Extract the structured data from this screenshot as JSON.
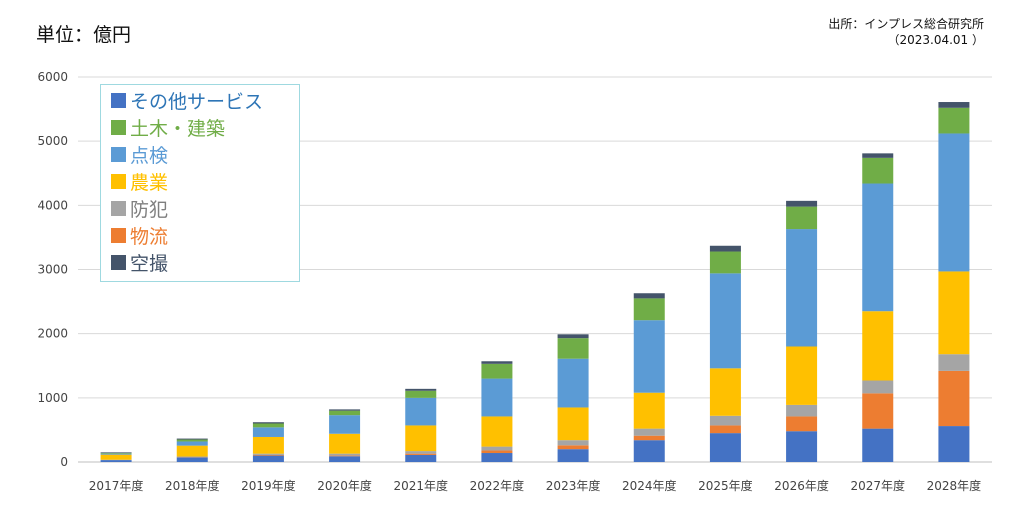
{
  "unit_label": "単位：億円",
  "source_line1": "出所：インプレス総合研究所",
  "source_line2": "（2023.04.01 ）",
  "chart_data": {
    "type": "bar",
    "stacked": true,
    "categories": [
      "2017年度",
      "2018年度",
      "2019年度",
      "2020年度",
      "2021年度",
      "2022年度",
      "2023年度",
      "2024年度",
      "2025年度",
      "2026年度",
      "2027年度",
      "2028年度"
    ],
    "ylim": [
      0,
      6000
    ],
    "yticks": [
      0,
      1000,
      2000,
      3000,
      4000,
      5000,
      6000
    ],
    "grid": true,
    "legend_position": "top-left",
    "series": [
      {
        "name": "その他サービス",
        "color": "#4472c4",
        "values": [
          30,
          70,
          100,
          90,
          110,
          140,
          200,
          340,
          450,
          480,
          520,
          560
        ]
      },
      {
        "name": "物流",
        "color": "#ed7d31",
        "values": [
          0,
          5,
          10,
          10,
          20,
          40,
          60,
          70,
          120,
          230,
          550,
          860
        ]
      },
      {
        "name": "防犯",
        "color": "#a5a5a5",
        "values": [
          5,
          10,
          20,
          30,
          40,
          60,
          80,
          110,
          150,
          180,
          200,
          260
        ]
      },
      {
        "name": "農業",
        "color": "#ffc000",
        "values": [
          80,
          170,
          260,
          310,
          400,
          470,
          510,
          560,
          740,
          910,
          1080,
          1290
        ]
      },
      {
        "name": "点検",
        "color": "#5b9bd5",
        "values": [
          15,
          65,
          150,
          290,
          430,
          590,
          760,
          1130,
          1480,
          1830,
          1990,
          2150
        ]
      },
      {
        "name": "土木・建築",
        "color": "#70ad47",
        "values": [
          10,
          30,
          60,
          70,
          110,
          230,
          320,
          340,
          340,
          350,
          400,
          400
        ]
      },
      {
        "name": "空撮",
        "color": "#44546a",
        "values": [
          10,
          15,
          20,
          20,
          30,
          40,
          60,
          80,
          90,
          90,
          70,
          90
        ]
      }
    ],
    "legend_order": [
      "その他サービス",
      "土木・建築",
      "点検",
      "農業",
      "防犯",
      "物流",
      "空撮"
    ],
    "legend_text_colors": {
      "その他サービス": "#2e75b6",
      "土木・建築": "#70ad47",
      "点検": "#5b9bd5",
      "農業": "#ffc000",
      "防犯": "#7f7f7f",
      "物流": "#ed7d31",
      "空撮": "#44546a"
    }
  }
}
